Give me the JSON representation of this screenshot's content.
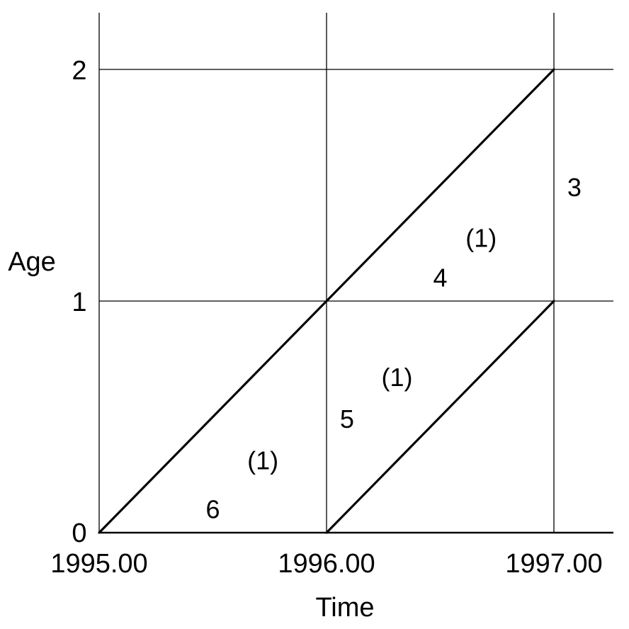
{
  "diagram": {
    "x_axis": {
      "title": "Time",
      "ticks": [
        {
          "value": 1995,
          "label": "1995.00"
        },
        {
          "value": 1996,
          "label": "1996.00"
        },
        {
          "value": 1997,
          "label": "1997.00"
        }
      ],
      "range": [
        1995,
        1997
      ]
    },
    "y_axis": {
      "title": "Age",
      "ticks": [
        {
          "value": 0,
          "label": "0"
        },
        {
          "value": 1,
          "label": "1"
        },
        {
          "value": 2,
          "label": "2"
        }
      ],
      "range": [
        0,
        2
      ]
    },
    "grid": true,
    "life_lines": [
      {
        "from": [
          1995,
          0
        ],
        "to": [
          1997,
          2
        ]
      },
      {
        "from": [
          1996,
          0
        ],
        "to": [
          1997,
          1
        ]
      }
    ],
    "annotations": [
      {
        "text": "6",
        "time": 1995.5,
        "age": 0.1
      },
      {
        "text": "(1)",
        "time": 1995.72,
        "age": 0.31
      },
      {
        "text": "5",
        "time": 1996.09,
        "age": 0.49
      },
      {
        "text": "(1)",
        "time": 1996.31,
        "age": 0.67
      },
      {
        "text": "4",
        "time": 1996.5,
        "age": 1.1
      },
      {
        "text": "(1)",
        "time": 1996.68,
        "age": 1.27
      },
      {
        "text": "3",
        "time": 1997.09,
        "age": 1.49
      }
    ]
  }
}
